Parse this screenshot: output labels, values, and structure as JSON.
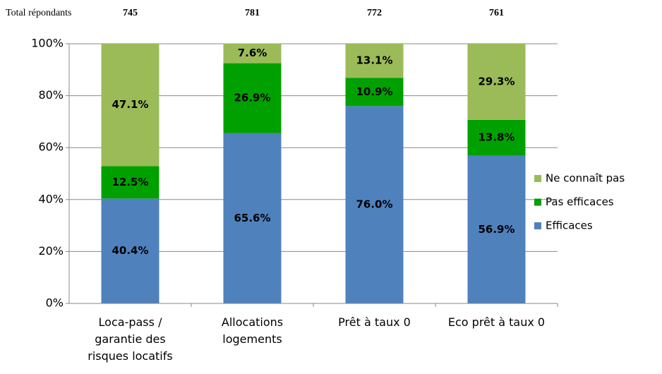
{
  "chart_data": {
    "type": "stacked_bar",
    "respondents_label": "Total répondants",
    "respondents": [
      745,
      781,
      772,
      761
    ],
    "categories": [
      "Loca-pass / garantie des risques locatifs",
      "Allocations logements",
      "Prêt à taux 0",
      "Eco prêt à taux 0"
    ],
    "series": [
      {
        "name": "Efficaces",
        "color": "#4f81bd",
        "values": [
          40.4,
          65.6,
          76.0,
          56.9
        ],
        "value_labels": [
          "40.4%",
          "65.6%",
          "76.0%",
          "56.9%"
        ]
      },
      {
        "name": "Pas efficaces",
        "color": "#00a000",
        "values": [
          12.5,
          26.9,
          10.9,
          13.8
        ],
        "value_labels": [
          "12.5%",
          "26.9%",
          "10.9%",
          "13.8%"
        ]
      },
      {
        "name": "Ne connaît pas",
        "color": "#9bbb59",
        "values": [
          47.1,
          7.6,
          13.1,
          29.3
        ],
        "value_labels": [
          "47.1%",
          "7.6%",
          "13.1%",
          "29.3%"
        ]
      }
    ],
    "ylim": [
      0,
      100
    ],
    "yticks": [
      {
        "value": 0,
        "label": "0%"
      },
      {
        "value": 20,
        "label": "20%"
      },
      {
        "value": 40,
        "label": "40%"
      },
      {
        "value": 60,
        "label": "60%"
      },
      {
        "value": 80,
        "label": "80%"
      },
      {
        "value": 100,
        "label": "100%"
      }
    ],
    "grid": true,
    "legend": "right"
  }
}
